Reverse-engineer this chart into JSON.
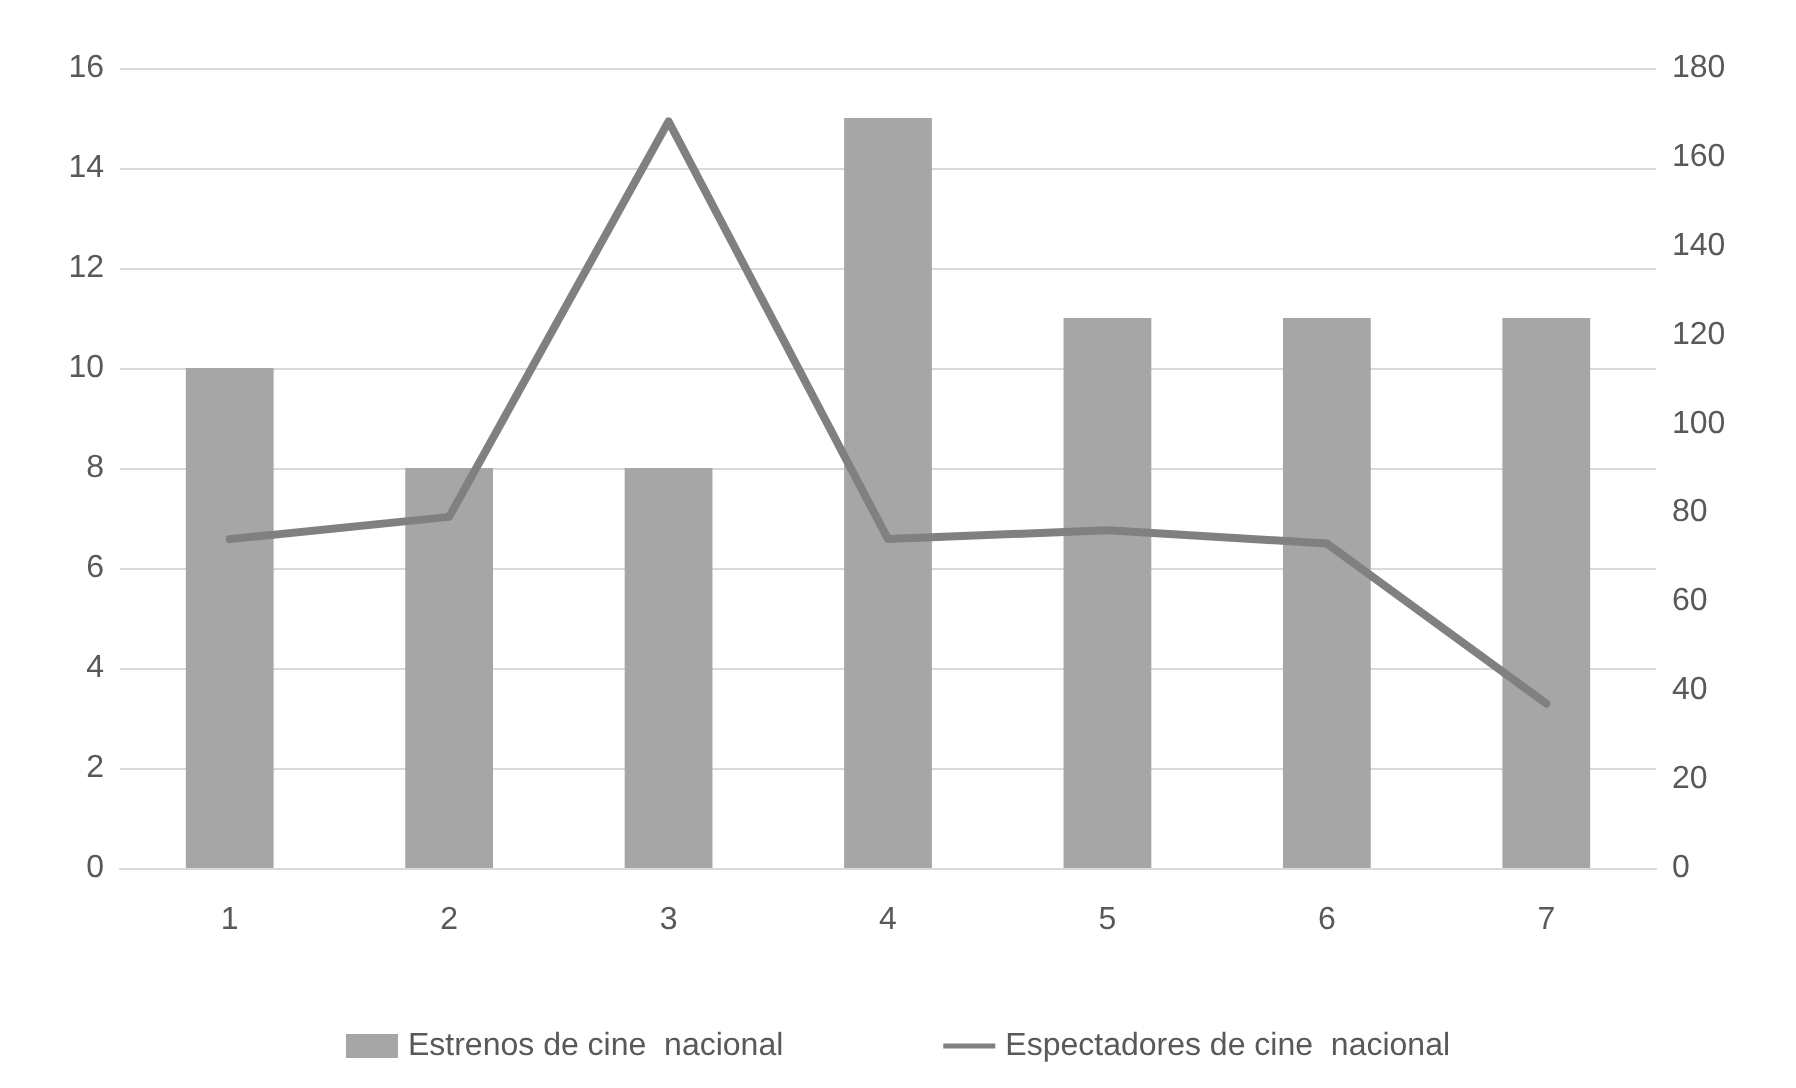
{
  "chart_data": {
    "type": "bar",
    "categories": [
      "1",
      "2",
      "3",
      "4",
      "5",
      "6",
      "7"
    ],
    "series": [
      {
        "name": "Estrenos de cine  nacional",
        "color": "#a6a6a6",
        "values": [
          10,
          8,
          8,
          15,
          11,
          11,
          11
        ]
      },
      {
        "name": "Espectadores de cine  nacional",
        "type": "line",
        "axis": "y2",
        "color": "#808080",
        "values": [
          74,
          79,
          168,
          74,
          76,
          73,
          37
        ]
      }
    ],
    "ylim": [
      0,
      16
    ],
    "yticks": [
      0,
      2,
      4,
      6,
      8,
      10,
      12,
      14,
      16
    ],
    "y2lim": [
      0,
      180
    ],
    "y2ticks": [
      0,
      20,
      40,
      60,
      80,
      100,
      120,
      140,
      160,
      180
    ],
    "grid": "y",
    "legend": "bottom",
    "marker": "none",
    "line_style": "solid"
  }
}
